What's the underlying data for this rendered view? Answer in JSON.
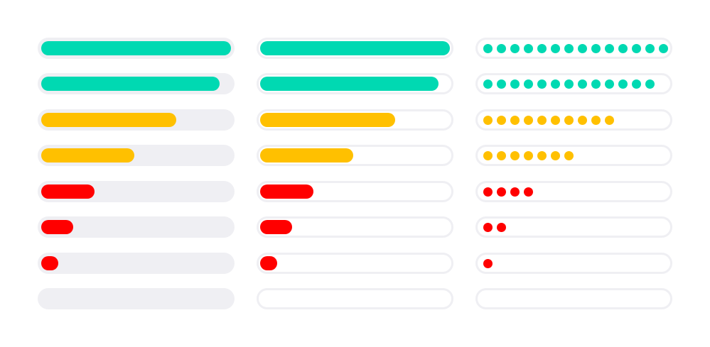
{
  "colors": {
    "high": "#00d9b2",
    "medium": "#ffc000",
    "low": "#ff0000"
  },
  "meters": [
    {
      "level": 1.0,
      "color_key": "high",
      "dots": 14
    },
    {
      "level": 0.94,
      "color_key": "high",
      "dots": 13
    },
    {
      "level": 0.71,
      "color_key": "medium",
      "dots": 10
    },
    {
      "level": 0.49,
      "color_key": "medium",
      "dots": 7
    },
    {
      "level": 0.28,
      "color_key": "low",
      "dots": 4
    },
    {
      "level": 0.17,
      "color_key": "low",
      "dots": 2
    },
    {
      "level": 0.08,
      "color_key": "low",
      "dots": 1
    },
    {
      "level": 0.0,
      "color_key": "low",
      "dots": 0
    }
  ]
}
